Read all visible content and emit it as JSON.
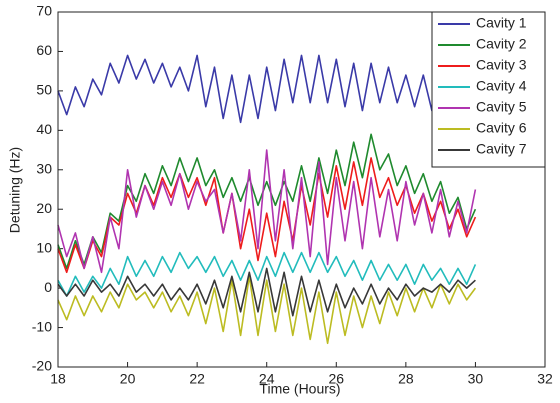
{
  "chart_data": {
    "type": "line",
    "xlabel": "Time (Hours)",
    "ylabel": "Detuning (Hz)",
    "xlim": [
      18,
      32
    ],
    "xticks": [
      18,
      20,
      22,
      24,
      26,
      28,
      30,
      32
    ],
    "ylim": [
      -20,
      70
    ],
    "yticks": [
      -20,
      -10,
      0,
      10,
      20,
      30,
      40,
      50,
      60,
      70
    ],
    "legend": "upper right",
    "x": [
      18,
      18.25,
      18.5,
      18.75,
      19,
      19.25,
      19.5,
      19.75,
      20,
      20.25,
      20.5,
      20.75,
      21,
      21.25,
      21.5,
      21.75,
      22,
      22.25,
      22.5,
      22.75,
      23,
      23.25,
      23.5,
      23.75,
      24,
      24.25,
      24.5,
      24.75,
      25,
      25.25,
      25.5,
      25.75,
      26,
      26.25,
      26.5,
      26.75,
      27,
      27.25,
      27.5,
      27.75,
      28,
      28.25,
      28.5,
      28.75,
      29,
      29.25,
      29.5,
      29.75,
      30
    ],
    "series": [
      {
        "name": "Cavity 1",
        "color": "#3a3aa8",
        "values": [
          50,
          44,
          51,
          46,
          53,
          49,
          57,
          52,
          59,
          53,
          58,
          52,
          57,
          51,
          56,
          50,
          59,
          46,
          56,
          43,
          54,
          42,
          54,
          43,
          56,
          45,
          58,
          47,
          59,
          47,
          59,
          47,
          58,
          46,
          57,
          45,
          57,
          47,
          56,
          47,
          54,
          46,
          54,
          45,
          53,
          45,
          52,
          44,
          53
        ]
      },
      {
        "name": "Cavity 2",
        "color": "#1f8a2e",
        "values": [
          11,
          5,
          12,
          6,
          13,
          9,
          19,
          17,
          26,
          22,
          29,
          24,
          31,
          26,
          33,
          27,
          33,
          26,
          30,
          23,
          28,
          22,
          28,
          21,
          27,
          21,
          27,
          22,
          31,
          22,
          33,
          24,
          35,
          26,
          37,
          28,
          39,
          30,
          34,
          26,
          31,
          24,
          29,
          22,
          27,
          19,
          23,
          15,
          20
        ]
      },
      {
        "name": "Cavity 3",
        "color": "#ee1c1c",
        "values": [
          10,
          4,
          11,
          5,
          12,
          8,
          18,
          16,
          24,
          19,
          26,
          21,
          28,
          23,
          29,
          23,
          28,
          21,
          28,
          14,
          24,
          10,
          20,
          7,
          19,
          8,
          22,
          12,
          26,
          16,
          29,
          18,
          31,
          20,
          32,
          21,
          33,
          23,
          28,
          21,
          26,
          19,
          24,
          17,
          22,
          15,
          20,
          13,
          18
        ]
      },
      {
        "name": "Cavity 4",
        "color": "#22bcbc",
        "values": [
          2,
          -2,
          3,
          -1,
          3,
          0,
          5,
          1,
          8,
          3,
          7,
          3,
          8,
          4,
          9,
          5,
          8,
          4,
          8,
          3,
          7,
          2,
          7,
          2,
          8,
          3,
          9,
          4,
          9,
          4,
          9,
          4,
          8,
          3,
          7,
          2,
          7,
          2,
          6,
          2,
          6,
          1,
          6,
          2,
          5,
          1,
          5,
          1,
          6
        ]
      },
      {
        "name": "Cavity 5",
        "color": "#b034b0",
        "values": [
          16,
          8,
          14,
          5,
          13,
          4,
          18,
          10,
          30,
          18,
          26,
          20,
          27,
          21,
          29,
          20,
          27,
          22,
          25,
          14,
          24,
          12,
          30,
          10,
          35,
          12,
          30,
          10,
          28,
          8,
          32,
          6,
          28,
          12,
          27,
          10,
          28,
          13,
          25,
          12,
          27,
          16,
          24,
          14,
          25,
          13,
          22,
          14,
          25
        ]
      },
      {
        "name": "Cavity 6",
        "color": "#bcbc22",
        "values": [
          -3,
          -8,
          -2,
          -7,
          -2,
          -6,
          -1,
          -5,
          1,
          -3,
          -1,
          -5,
          -1,
          -6,
          -2,
          -7,
          -1,
          -9,
          0,
          -11,
          2,
          -12,
          3,
          -12,
          2,
          -11,
          1,
          -12,
          0,
          -13,
          -1,
          -14,
          -1,
          -12,
          -2,
          -10,
          -2,
          -9,
          -1,
          -7,
          0,
          -6,
          0,
          -5,
          1,
          -4,
          1,
          -3,
          0
        ]
      },
      {
        "name": "Cavity 7",
        "color": "#383838",
        "values": [
          1,
          -2,
          1,
          -2,
          2,
          -1,
          1,
          -2,
          3,
          -1,
          1,
          -2,
          1,
          -3,
          0,
          -3,
          1,
          -4,
          2,
          -5,
          3,
          -6,
          4,
          -6,
          5,
          -6,
          4,
          -7,
          3,
          -6,
          2,
          -6,
          1,
          -5,
          0,
          -4,
          1,
          -4,
          0,
          -3,
          1,
          -2,
          0,
          -1,
          1,
          -1,
          2,
          0,
          2
        ]
      }
    ]
  }
}
